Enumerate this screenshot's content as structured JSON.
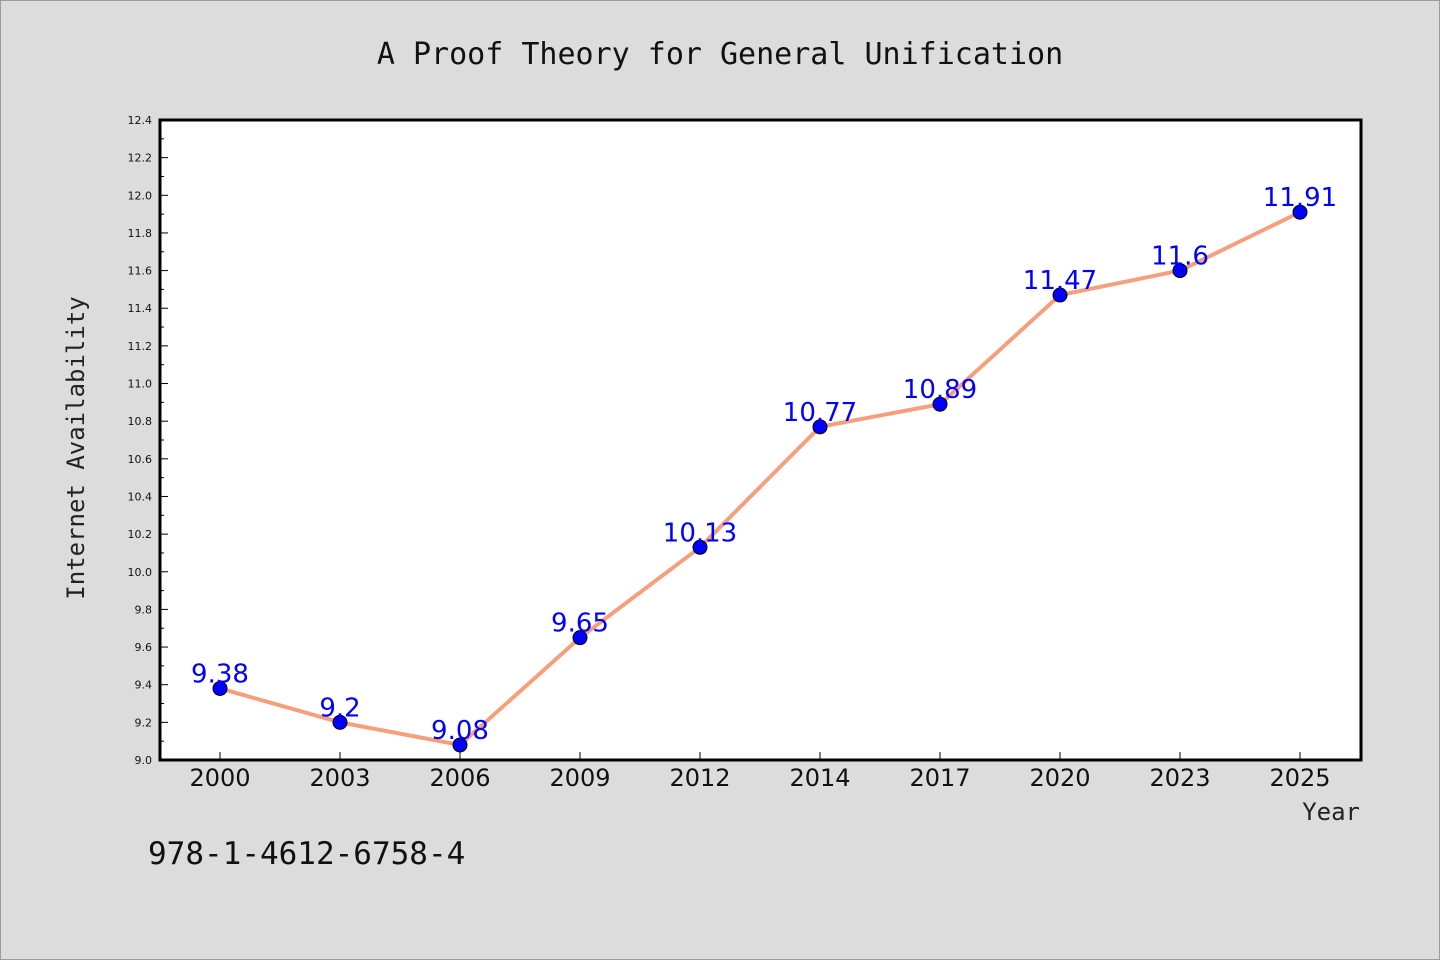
{
  "chart_data": {
    "type": "line",
    "title": "A Proof Theory for General Unification",
    "xlabel": "Year",
    "ylabel": "Internet Availability",
    "categories": [
      "2000",
      "2003",
      "2006",
      "2009",
      "2012",
      "2014",
      "2017",
      "2020",
      "2023",
      "2025"
    ],
    "series": [
      {
        "values": [
          9.38,
          9.2,
          9.08,
          9.65,
          10.13,
          10.77,
          10.89,
          11.47,
          11.6,
          11.91
        ],
        "labels": [
          "9.38",
          "9.2",
          "9.08",
          "9.65",
          "10.13",
          "10.77",
          "10.89",
          "11.47",
          "11.6",
          "11.91"
        ],
        "line_color": "#f5a07a",
        "marker_color": "#0000ff"
      }
    ],
    "ylim": [
      9.0,
      12.4
    ],
    "yticks": [
      "9.0",
      "9.2",
      "9.4",
      "9.6",
      "9.8",
      "10.0",
      "10.2",
      "10.4",
      "10.6",
      "10.8",
      "11.0",
      "11.2",
      "11.4",
      "11.6",
      "11.8",
      "12.0",
      "12.2",
      "12.4"
    ],
    "grid": false,
    "legend": "none"
  },
  "annotation": "978-1-4612-6758-4"
}
